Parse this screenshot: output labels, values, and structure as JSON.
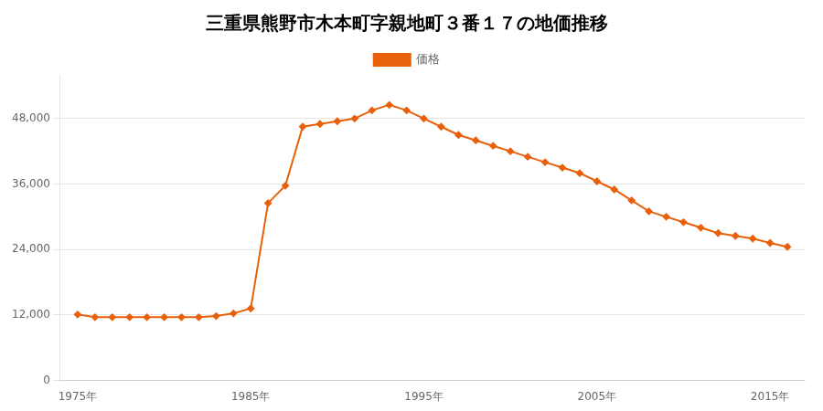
{
  "chart_data": {
    "type": "line",
    "title": "三重県熊野市木本町字親地町３番１７の地価推移",
    "x": [
      1975,
      1976,
      1977,
      1978,
      1979,
      1980,
      1981,
      1982,
      1983,
      1984,
      1985,
      1986,
      1987,
      1988,
      1989,
      1990,
      1991,
      1992,
      1993,
      1994,
      1995,
      1996,
      1997,
      1998,
      1999,
      2000,
      2001,
      2002,
      2003,
      2004,
      2005,
      2006,
      2007,
      2008,
      2009,
      2010,
      2011,
      2012,
      2013,
      2014,
      2015,
      2016
    ],
    "series": [
      {
        "name": "価格",
        "color": "#e8600a",
        "marker": "diamond",
        "values": [
          12100,
          11600,
          11600,
          11600,
          11600,
          11600,
          11600,
          11600,
          11800,
          12300,
          13200,
          32500,
          35700,
          46500,
          47000,
          47500,
          48000,
          49500,
          50500,
          49500,
          48000,
          46500,
          45000,
          44000,
          43000,
          42000,
          41000,
          40000,
          39000,
          38000,
          36500,
          35000,
          33000,
          31000,
          30000,
          29000,
          28000,
          27000,
          26500,
          26000,
          25200,
          24500
        ]
      }
    ],
    "xlim": [
      1974,
      2017
    ],
    "xticks": [
      {
        "value": 1975,
        "label": "1975年"
      },
      {
        "value": 1985,
        "label": "1985年"
      },
      {
        "value": 1995,
        "label": "1995年"
      },
      {
        "value": 2005,
        "label": "2005年"
      },
      {
        "value": 2015,
        "label": "2015年"
      }
    ],
    "ylim": [
      0,
      56000
    ],
    "yticks": [
      0,
      {
        "value": 12000,
        "label": "12,000"
      },
      {
        "value": 24000,
        "label": "24,000"
      },
      {
        "value": 36000,
        "label": "36,000"
      },
      {
        "value": 48000,
        "label": "48,000"
      }
    ],
    "grid": "y",
    "legend": "top"
  }
}
